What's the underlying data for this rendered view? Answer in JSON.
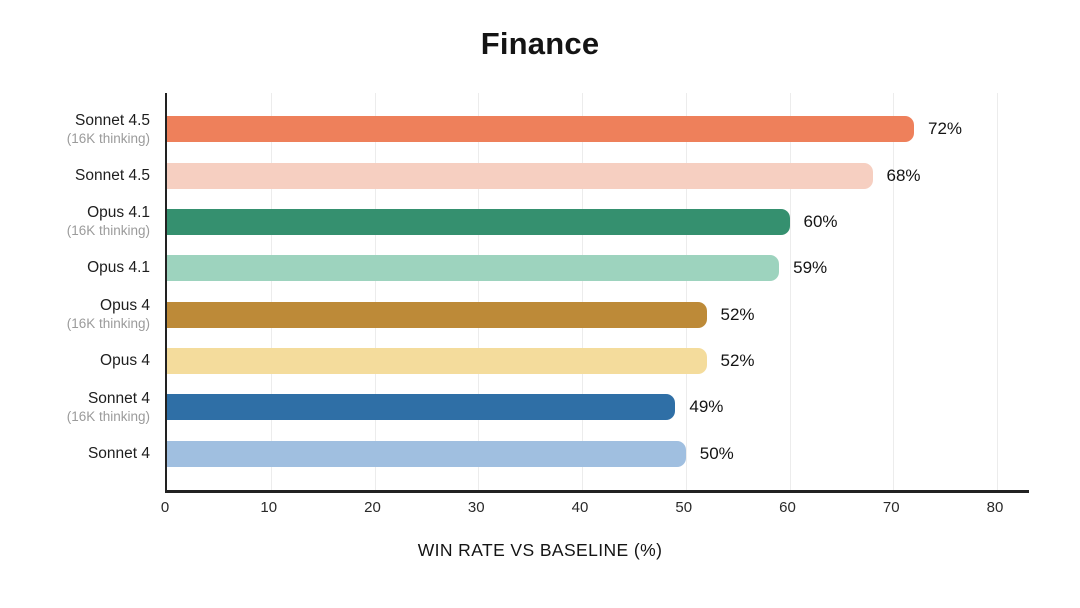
{
  "title": "Finance",
  "xlabel": "WIN RATE VS BASELINE (%)",
  "chart_data": {
    "type": "bar",
    "orientation": "horizontal",
    "title": "Finance",
    "xlabel": "WIN RATE VS BASELINE (%)",
    "xlim": [
      0,
      83
    ],
    "ticks": [
      0,
      10,
      20,
      30,
      40,
      50,
      60,
      70,
      80
    ],
    "grid": true,
    "legend": "none",
    "axis_color": "#222222",
    "gridline_color": "#ececec",
    "bars": [
      {
        "label": "Sonnet 4.5",
        "sublabel": "(16K thinking)",
        "value": 72,
        "display": "72%",
        "color": "#EE805B"
      },
      {
        "label": "Sonnet 4.5",
        "sublabel": "",
        "value": 68,
        "display": "68%",
        "color": "#F6CFC1"
      },
      {
        "label": "Opus 4.1",
        "sublabel": "(16K thinking)",
        "value": 60,
        "display": "60%",
        "color": "#35906F"
      },
      {
        "label": "Opus 4.1",
        "sublabel": "",
        "value": 59,
        "display": "59%",
        "color": "#9DD3BE"
      },
      {
        "label": "Opus 4",
        "sublabel": "(16K thinking)",
        "value": 52,
        "display": "52%",
        "color": "#BD8A38"
      },
      {
        "label": "Opus 4",
        "sublabel": "",
        "value": 52,
        "display": "52%",
        "color": "#F4DC9C"
      },
      {
        "label": "Sonnet 4",
        "sublabel": "(16K thinking)",
        "value": 49,
        "display": "49%",
        "color": "#2F6FA6"
      },
      {
        "label": "Sonnet 4",
        "sublabel": "",
        "value": 50,
        "display": "50%",
        "color": "#A0BFE0"
      }
    ]
  }
}
